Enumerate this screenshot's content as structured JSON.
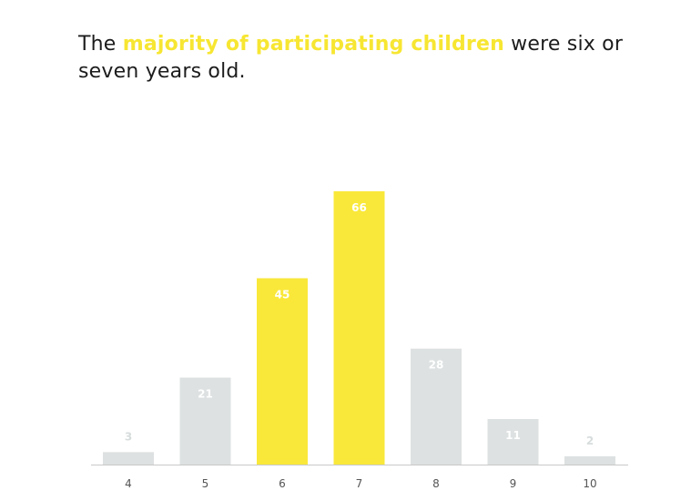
{
  "title": {
    "prefix": "The ",
    "highlight": "majority of participating children",
    "suffix": " were six or seven years old."
  },
  "colors": {
    "highlight": "#f7e632",
    "bar_highlight": "#f9e83a",
    "bar_default": "#dde1e1",
    "axis": "#c9c9c9",
    "text": "#1c1c1c"
  },
  "chart_data": {
    "type": "bar",
    "title": "The majority of participating children were six or seven years old.",
    "xlabel": "",
    "ylabel": "",
    "categories": [
      "4",
      "5",
      "6",
      "7",
      "8",
      "9",
      "10"
    ],
    "values": [
      3,
      21,
      45,
      66,
      28,
      11,
      2
    ],
    "highlighted": [
      false,
      false,
      true,
      true,
      false,
      false,
      false
    ],
    "ylim": [
      0,
      66
    ],
    "grid": false,
    "legend": "none"
  }
}
